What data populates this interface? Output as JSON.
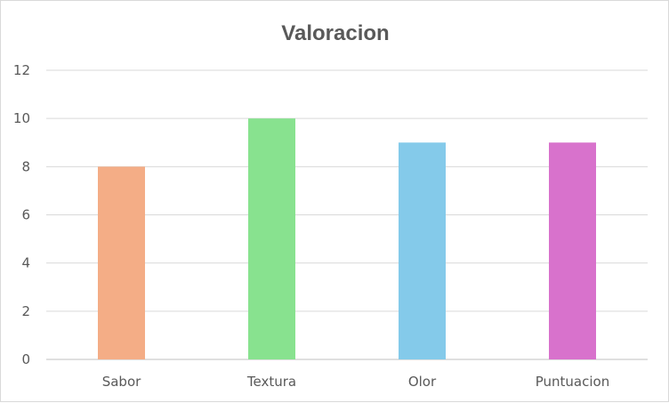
{
  "chart_data": {
    "type": "bar",
    "title": "Valoracion",
    "xlabel": "",
    "ylabel": "",
    "categories": [
      "Sabor",
      "Textura",
      "Olor",
      "Puntuacion"
    ],
    "values": [
      8,
      10,
      9,
      9
    ],
    "colors": [
      "#f4ad86",
      "#88e28f",
      "#84caea",
      "#d872cc"
    ],
    "ylim": [
      0,
      12
    ],
    "yticks": [
      "0",
      "2",
      "4",
      "6",
      "8",
      "10",
      "12"
    ],
    "grid": true,
    "legend": "none"
  }
}
